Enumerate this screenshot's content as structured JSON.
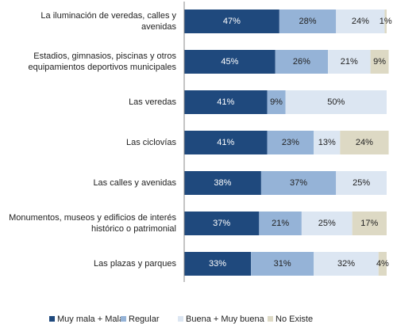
{
  "chart_data": {
    "type": "stacked-bar-horizontal",
    "categories": [
      "La iluminación de veredas, calles y avenidas",
      "Estadios, gimnasios, piscinas y otros equipamientos deportivos municipales",
      "Las veredas",
      "Las ciclovías",
      "Las calles y avenidas",
      "Monumentos, museos y edificios de interés histórico o patrimonial",
      "Las plazas y parques"
    ],
    "series": [
      {
        "name": "Muy mala + Mala",
        "color": "#1f497d",
        "label_color": "#ffffff",
        "values": [
          47,
          45,
          41,
          41,
          38,
          37,
          33
        ],
        "value_labels": [
          "47%",
          "45%",
          "41%",
          "41%",
          "38%",
          "37%",
          "33%"
        ]
      },
      {
        "name": "Regular",
        "color": "#95b3d7",
        "label_color": "#222222",
        "values": [
          28,
          26,
          9,
          23,
          37,
          21,
          31
        ],
        "value_labels": [
          "28%",
          "26%",
          "9%",
          "23%",
          "37%",
          "21%",
          "31%"
        ]
      },
      {
        "name": "Buena + Muy buena",
        "color": "#dce6f2",
        "label_color": "#222222",
        "values": [
          24,
          21,
          50,
          13,
          25,
          25,
          32
        ],
        "value_labels": [
          "24%",
          "21%",
          "50%",
          "13%",
          "25%",
          "25%",
          "32%"
        ]
      },
      {
        "name": "No Existe",
        "color": "#ddd9c4",
        "label_color": "#222222",
        "values": [
          1,
          9,
          null,
          24,
          null,
          17,
          4
        ],
        "value_labels": [
          "1%",
          "9%",
          null,
          "24%",
          null,
          "17%",
          "4%"
        ]
      }
    ],
    "xlim": [
      0,
      100
    ],
    "legend": "bottom"
  }
}
